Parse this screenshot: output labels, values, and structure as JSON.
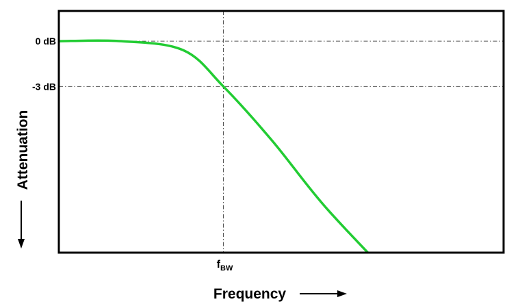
{
  "chart_data": {
    "type": "line",
    "title": "",
    "xlabel": "Frequency",
    "ylabel": "Attenuation",
    "xlim": [
      0,
      1
    ],
    "ylim": [
      -14,
      2
    ],
    "y_ticks": [
      {
        "value": 0,
        "label": "0 dB"
      },
      {
        "value": -3,
        "label": "-3 dB"
      }
    ],
    "x_markers": [
      {
        "value": 0.37,
        "label_main": "f",
        "label_sub": "BW"
      }
    ],
    "series": [
      {
        "color": "#22cc33",
        "points": [
          [
            0,
            0
          ],
          [
            0.14,
            0
          ],
          [
            0.28,
            -0.6
          ],
          [
            0.37,
            -3
          ],
          [
            0.48,
            -6.6
          ],
          [
            0.6,
            -11
          ],
          [
            0.76,
            -16
          ]
        ]
      }
    ],
    "grid": false,
    "reference_lines_style": "dash-dot"
  },
  "colors": {
    "curve": "#22cc33",
    "frame": "#000000",
    "reference": "#555555"
  },
  "icons": {
    "x_arrow": "right-arrow-icon",
    "y_arrow": "down-arrow-icon"
  }
}
